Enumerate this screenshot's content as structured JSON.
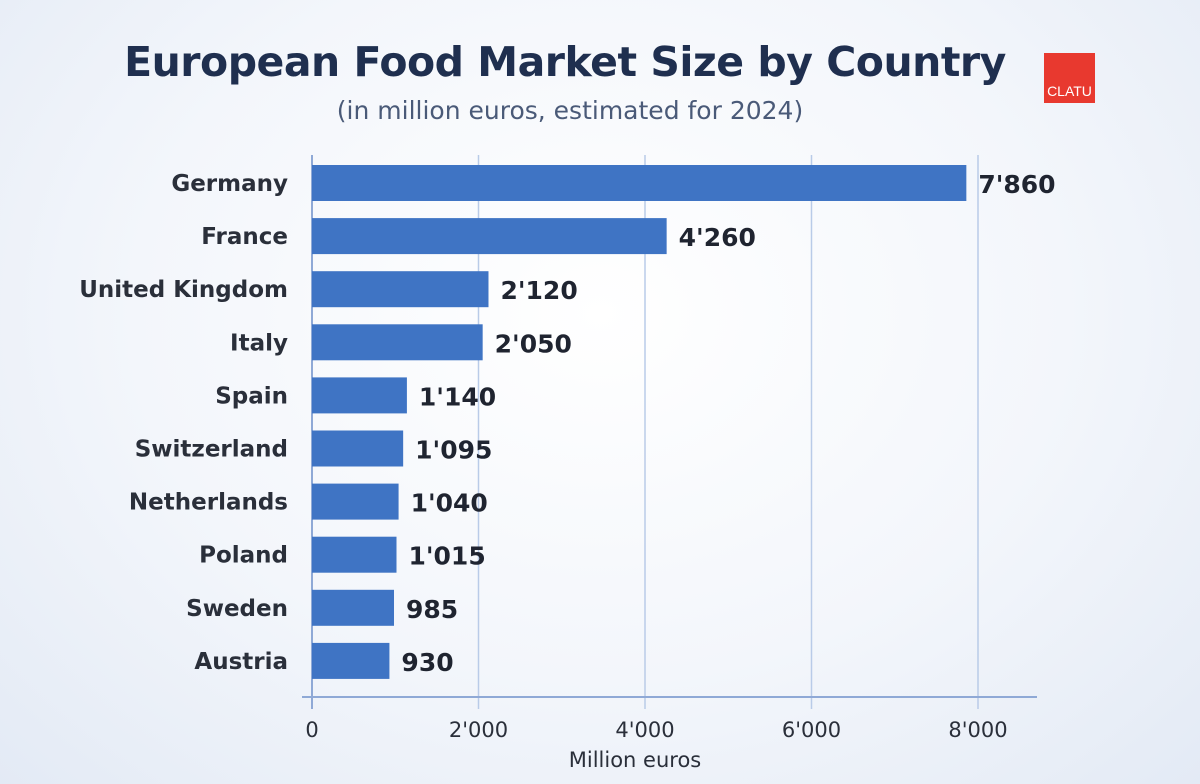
{
  "chart_data": {
    "type": "bar",
    "orientation": "horizontal",
    "title": "European Food Market Size by Country",
    "subtitle": "(in million euros, estimated for 2024)",
    "categories": [
      "Germany",
      "France",
      "United Kingdom",
      "Italy",
      "Spain",
      "Switzerland",
      "Netherlands",
      "Poland",
      "Sweden",
      "Austria"
    ],
    "values": [
      7860,
      4260,
      2120,
      2050,
      1140,
      1095,
      1040,
      1015,
      985,
      930
    ],
    "data_labels": [
      "7'860",
      "4'260",
      "2'120",
      "2'050",
      "1'140",
      "1'095",
      "1'040",
      "1'015",
      "985",
      "930"
    ],
    "xlabel": "Million euros",
    "ylabel": "",
    "xlim": [
      0,
      8000
    ],
    "xticks": [
      0,
      2000,
      4000,
      6000,
      8000
    ],
    "xtick_labels": [
      "0",
      "2'000",
      "4'000",
      "6'000",
      "8'000"
    ],
    "grid": "vertical",
    "bar_color": "#3f74c4"
  },
  "logo": {
    "text": "CLATU",
    "color": "#e8392f"
  }
}
